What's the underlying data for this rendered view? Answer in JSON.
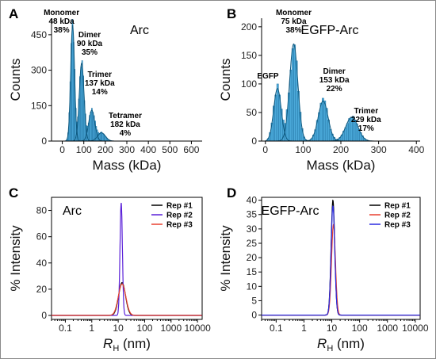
{
  "chart_data": [
    {
      "panel": "A",
      "type": "bar",
      "title": "Arc",
      "xlabel": "Mass (kDa)",
      "ylabel": "Counts",
      "xlim": [
        -50,
        650
      ],
      "ylim": [
        0,
        520
      ],
      "xticks": [
        0,
        100,
        200,
        300,
        400,
        500,
        600
      ],
      "yticks": [
        0,
        150,
        300,
        450
      ],
      "bin_width": 5,
      "histogram_peaks_approx": [
        {
          "center": 48,
          "height": 490,
          "width": 9
        },
        {
          "center": 90,
          "height": 330,
          "width": 11
        },
        {
          "center": 137,
          "height": 130,
          "width": 14
        },
        {
          "center": 182,
          "height": 35,
          "width": 18
        }
      ],
      "annotations": [
        {
          "lines": [
            "Monomer",
            "48 kDa",
            "38%"
          ],
          "x": 48
        },
        {
          "lines": [
            "Dimer",
            "90 kDa",
            "35%"
          ],
          "x": 90
        },
        {
          "lines": [
            "Trimer",
            "137 kDa",
            "14%"
          ],
          "x": 137
        },
        {
          "lines": [
            "Tetramer",
            "182 kDa",
            "4%"
          ],
          "x": 182
        }
      ]
    },
    {
      "panel": "B",
      "type": "bar",
      "title": "EGFP-Arc",
      "xlabel": "Mass (kDa)",
      "ylabel": "Counts",
      "xlim": [
        -10,
        410
      ],
      "ylim": [
        0,
        215
      ],
      "xticks": [
        0,
        100,
        200,
        300,
        400
      ],
      "yticks": [
        0,
        50,
        100,
        150,
        200
      ],
      "bin_width": 5,
      "histogram_peaks_approx": [
        {
          "center": 32,
          "height": 92,
          "width": 10
        },
        {
          "center": 75,
          "height": 170,
          "width": 11
        },
        {
          "center": 153,
          "height": 70,
          "width": 13
        },
        {
          "center": 229,
          "height": 42,
          "width": 16
        }
      ],
      "annotations": [
        {
          "lines": [
            "EGFP"
          ],
          "x": 32
        },
        {
          "lines": [
            "Monomer",
            "75 kDa",
            "38%"
          ],
          "x": 75
        },
        {
          "lines": [
            "Dimer",
            "153 kDa",
            "22%"
          ],
          "x": 153
        },
        {
          "lines": [
            "Trimer",
            "229 kDa",
            "17%"
          ],
          "x": 229
        }
      ]
    },
    {
      "panel": "C",
      "type": "line",
      "title": "Arc",
      "xlabel": "R_H (nm)",
      "ylabel": "% Intensity",
      "xscale": "log",
      "xlim": [
        0.03,
        15000
      ],
      "ylim": [
        -3,
        90
      ],
      "xticks": [
        "0.1",
        "1",
        "10",
        "100",
        "1000",
        "10000"
      ],
      "yticks": [
        0,
        20,
        40,
        60,
        80
      ],
      "legend": "top-right",
      "series": [
        {
          "name": "Rep #1",
          "color": "#000000",
          "peak_center": 14,
          "peak_height": 25,
          "log_sigma": 0.13
        },
        {
          "name": "Rep #2",
          "color": "#5a20d8",
          "peak_center": 13,
          "peak_height": 86,
          "log_sigma": 0.045
        },
        {
          "name": "Rep #3",
          "color": "#e84030",
          "peak_center": 14,
          "peak_height": 24,
          "log_sigma": 0.14
        }
      ]
    },
    {
      "panel": "D",
      "type": "line",
      "title": "EGFP-Arc",
      "xlabel": "R_H (nm)",
      "ylabel": "% Intensity",
      "xscale": "log",
      "xlim": [
        0.03,
        15000
      ],
      "ylim": [
        -1.5,
        41
      ],
      "xticks": [
        "0.1",
        "1",
        "10",
        "100",
        "1000",
        "10000"
      ],
      "yticks": [
        0,
        5,
        10,
        15,
        20,
        25,
        30,
        35,
        40
      ],
      "legend": "top-right",
      "series": [
        {
          "name": "Rep #1",
          "color": "#000000",
          "peak_center": 11,
          "peak_height": 40,
          "log_sigma": 0.065
        },
        {
          "name": "Rep #2",
          "color": "#e84030",
          "peak_center": 11.5,
          "peak_height": 31.5,
          "log_sigma": 0.07
        },
        {
          "name": "Rep #3",
          "color": "#2a2ae0",
          "peak_center": 11,
          "peak_height": 38,
          "log_sigma": 0.065
        }
      ]
    }
  ],
  "panel_labels": [
    "A",
    "B",
    "C",
    "D"
  ],
  "colors": {
    "bar_fill": "#4aa8d8",
    "bar_edge": "#1a6a9a",
    "fit_line": "#0f5a80"
  }
}
